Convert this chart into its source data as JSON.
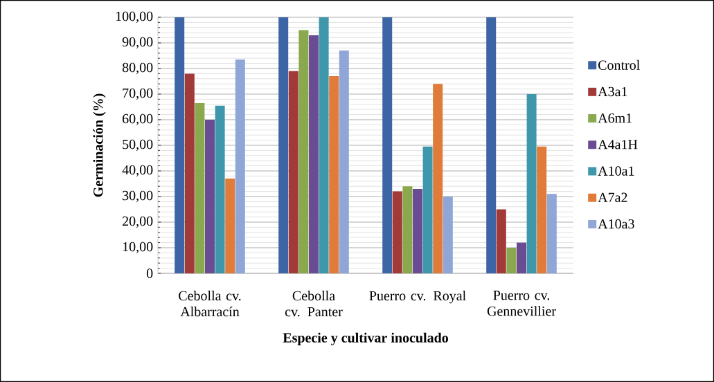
{
  "chart_data": {
    "type": "bar",
    "xlabel": "Especie y cultivar inoculado",
    "ylabel": "Germinación (%)",
    "categories": [
      "Cebolla cv. Albarracín",
      "Cebolla cv. Panter",
      "Puerro cv. Royal",
      "Puerro cv. Gennevillier"
    ],
    "series": [
      {
        "name": "Control",
        "color": "#3d65a5",
        "values": [
          100,
          100,
          100,
          100
        ]
      },
      {
        "name": "A3a1",
        "color": "#a33a3a",
        "values": [
          78,
          79,
          32,
          25
        ]
      },
      {
        "name": "A6m1",
        "color": "#8aa84e",
        "values": [
          66.5,
          95,
          34,
          10
        ]
      },
      {
        "name": "A4a1H",
        "color": "#6a4c93",
        "values": [
          60,
          93,
          33,
          12
        ]
      },
      {
        "name": "A10a1",
        "color": "#3f97ab",
        "values": [
          65.5,
          100,
          49.5,
          70
        ]
      },
      {
        "name": "A7a2",
        "color": "#e07b39",
        "values": [
          37,
          77,
          74,
          49.5
        ]
      },
      {
        "name": "A10a3",
        "color": "#8fa6d6",
        "values": [
          83.5,
          87,
          30,
          31
        ]
      }
    ],
    "ylim": [
      0,
      100
    ],
    "yticks": [
      0,
      {
        "value": 10,
        "label": "10,00"
      },
      {
        "value": 20,
        "label": "20,00"
      },
      {
        "value": 30,
        "label": "30,00"
      },
      {
        "value": 40,
        "label": "40,00"
      },
      {
        "value": 50,
        "label": "50,00"
      },
      {
        "value": 60,
        "label": "60,00"
      },
      {
        "value": 70,
        "label": "70,00"
      },
      {
        "value": 80,
        "label": "80,00"
      },
      {
        "value": 90,
        "label": "90,00"
      },
      {
        "value": 100,
        "label": "100,00"
      }
    ],
    "grid": true,
    "legend": "right"
  }
}
